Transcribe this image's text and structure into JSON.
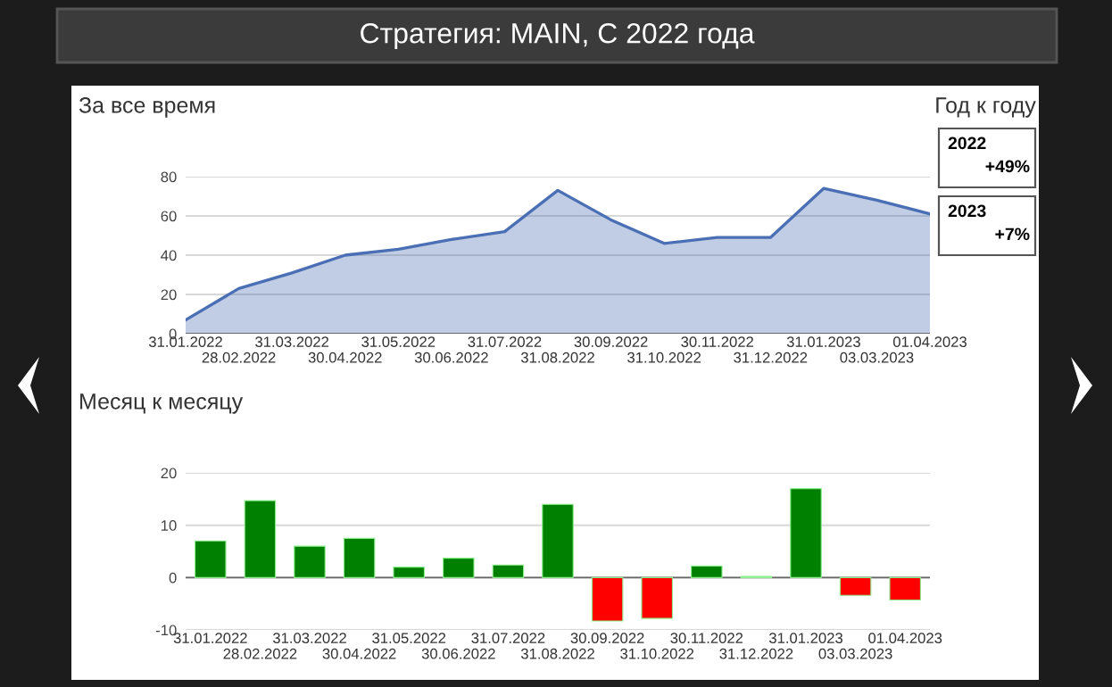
{
  "chart_data": [
    {
      "type": "other",
      "title": "Стратегия: MAIN, С 2022 года"
    },
    {
      "type": "area",
      "title": "За все время",
      "categories": [
        "31.01.2022",
        "28.02.2022",
        "31.03.2022",
        "30.04.2022",
        "31.05.2022",
        "30.06.2022",
        "31.07.2022",
        "31.08.2022",
        "30.09.2022",
        "31.10.2022",
        "30.11.2022",
        "31.12.2022",
        "31.01.2023",
        "03.03.2023",
        "01.04.2023"
      ],
      "series": [
        {
          "color": "#4a6fb5",
          "values": [
            7,
            23,
            31,
            40,
            43,
            48,
            52,
            73,
            58,
            46,
            49,
            49,
            74,
            68,
            61
          ]
        }
      ],
      "ylim": [
        0,
        80
      ],
      "yticks": [
        0,
        20,
        40,
        60,
        80
      ],
      "grid": "y"
    },
    {
      "type": "bar",
      "title": "Месяц к месяцу",
      "categories": [
        "31.01.2022",
        "28.02.2022",
        "31.03.2022",
        "30.04.2022",
        "31.05.2022",
        "30.06.2022",
        "31.07.2022",
        "31.08.2022",
        "30.09.2022",
        "31.10.2022",
        "30.11.2022",
        "31.12.2022",
        "31.01.2023",
        "03.03.2023",
        "01.04.2023"
      ],
      "values": [
        7,
        14.7,
        6,
        7.5,
        2,
        3.7,
        2.4,
        14,
        -8.3,
        -7.8,
        2.2,
        0.2,
        17,
        -3.4,
        -4.3
      ],
      "colors": [
        "#008000",
        "#008000",
        "#008000",
        "#008000",
        "#008000",
        "#008000",
        "#008000",
        "#008000",
        "#ff0000",
        "#ff0000",
        "#008000",
        "#008000",
        "#008000",
        "#ff0000",
        "#ff0000"
      ],
      "ylim": [
        -10,
        20
      ],
      "yticks": [
        -10,
        0,
        10,
        20
      ],
      "grid": "y"
    },
    {
      "type": "other",
      "title": "Год к году",
      "annotations": [
        "2022",
        "+49%",
        "2023",
        "+7%"
      ]
    }
  ]
}
